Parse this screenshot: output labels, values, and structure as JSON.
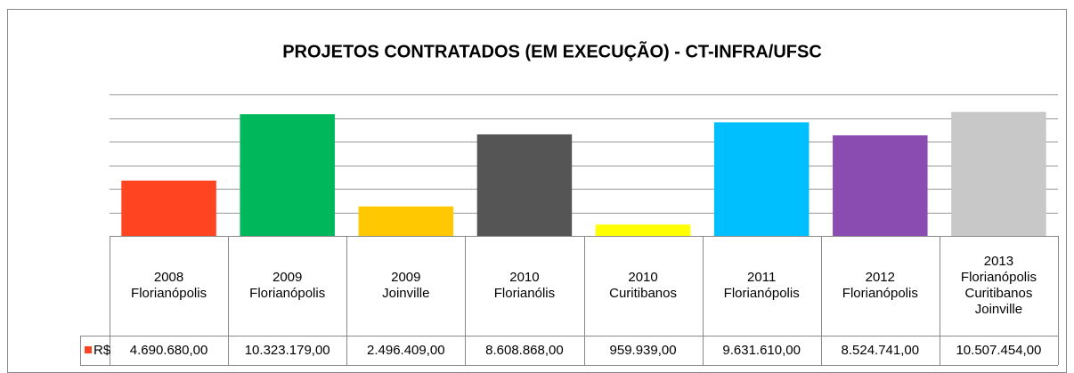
{
  "chart_data": {
    "type": "bar",
    "title": "PROJETOS CONTRATADOS (EM EXECUÇÃO) - CT-INFRA/UFSC",
    "categories": [
      [
        "2008",
        "Florianópolis"
      ],
      [
        "2009",
        "Florianópolis"
      ],
      [
        "2009",
        "Joinville"
      ],
      [
        "2010",
        "Florianólis"
      ],
      [
        "2010",
        "Curitibanos"
      ],
      [
        "2011",
        "Florianópolis"
      ],
      [
        "2012",
        "Florianópolis"
      ],
      [
        "2013",
        "Florianópolis",
        "Curitibanos",
        "Joinville"
      ]
    ],
    "series": [
      {
        "name": "R$",
        "color": "#ff4422",
        "colors": [
          "#ff4422",
          "#00b85c",
          "#ffc800",
          "#555555",
          "#ffff00",
          "#00bfff",
          "#8a4cb0",
          "#c8c8c8"
        ],
        "values": [
          4690680,
          10323179,
          2496409,
          8608868,
          959939,
          9631610,
          8524741,
          10507454
        ],
        "value_labels": [
          "4.690.680,00",
          "10.323.179,00",
          "2.496.409,00",
          "8.608.868,00",
          "959.939,00",
          "9.631.610,00",
          "8.524.741,00",
          "10.507.454,00"
        ]
      }
    ],
    "ylim": [
      0,
      12000000
    ],
    "yticks": [
      0,
      2000000,
      4000000,
      6000000,
      8000000,
      10000000,
      12000000
    ],
    "grid": true
  }
}
